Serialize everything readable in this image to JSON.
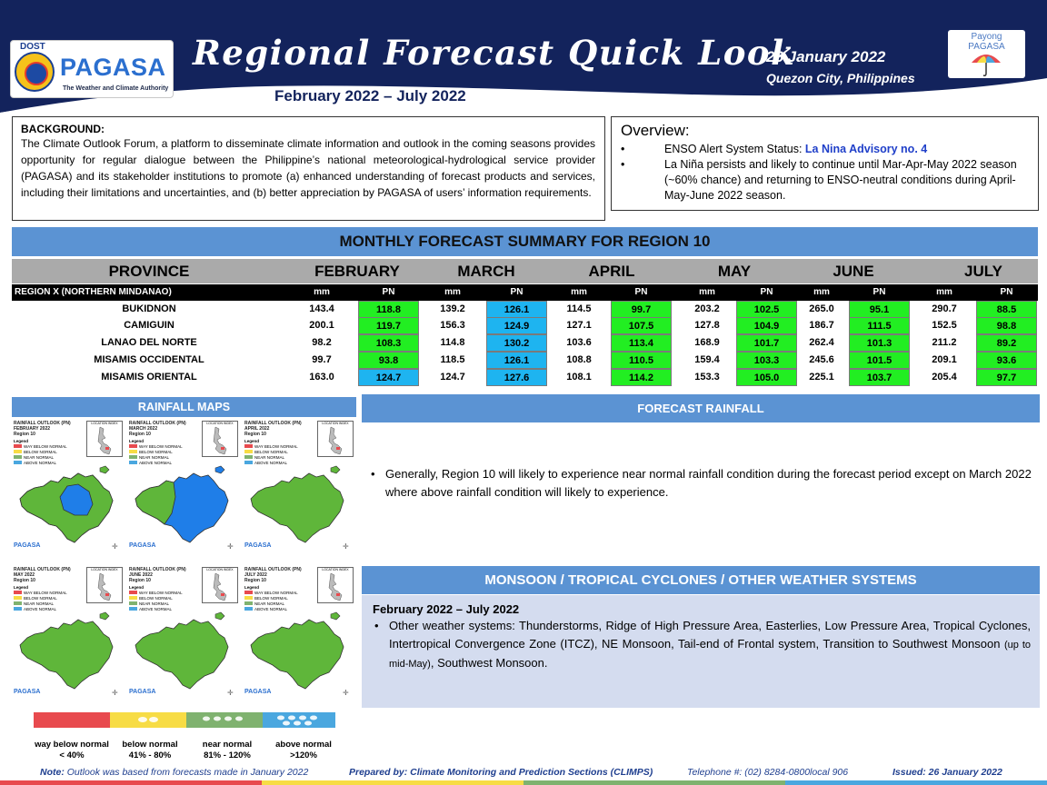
{
  "header": {
    "dost": "DOST",
    "agency": "PAGASA",
    "tagline": "The Weather and Climate Authority",
    "title": "Regional Forecast Quick Look",
    "period": "February 2022 – July 2022",
    "date": "26 January 2022",
    "place": "Quezon City, Philippines",
    "payong_line1": "Payong",
    "payong_line2": "PAGASA"
  },
  "background": {
    "title": "BACKGROUND:",
    "text": "The Climate Outlook Forum, a platform to disseminate climate information and outlook in the coming seasons provides opportunity for regular dialogue between the Philippine’s national meteorological-hydrological service provider (PAGASA) and its stakeholder institutions to promote (a) enhanced understanding of forecast products and services, including their limitations and uncertainties, and (b) better appreciation by PAGASA of users’ information requirements."
  },
  "overview": {
    "title": "Overview:",
    "item1_prefix": "ENSO Alert System Status: ",
    "item1_status": "La Nina Advisory no. 4",
    "item2": "La Niña persists and likely to continue until Mar-Apr-May 2022 season (~60% chance) and returning to ENSO-neutral conditions during April-May-June 2022 season."
  },
  "summary": {
    "title": "MONTHLY FORECAST SUMMARY FOR REGION 10",
    "province_header": "PROVINCE",
    "region_label": "REGION X (NORTHERN MINDANAO)",
    "months": [
      "FEBRUARY",
      "MARCH",
      "APRIL",
      "MAY",
      "JUNE",
      "JULY"
    ],
    "unit_mm": "mm",
    "unit_pn": "PN",
    "rows": [
      {
        "province": "BUKIDNON",
        "values": [
          [
            "143.4",
            "118.8"
          ],
          [
            "139.2",
            "126.1"
          ],
          [
            "114.5",
            "99.7"
          ],
          [
            "203.2",
            "102.5"
          ],
          [
            "265.0",
            "95.1"
          ],
          [
            "290.7",
            "88.5"
          ]
        ],
        "pn_class": [
          "near",
          "above",
          "near",
          "near",
          "near",
          "near"
        ]
      },
      {
        "province": "CAMIGUIN",
        "values": [
          [
            "200.1",
            "119.7"
          ],
          [
            "156.3",
            "124.9"
          ],
          [
            "127.1",
            "107.5"
          ],
          [
            "127.8",
            "104.9"
          ],
          [
            "186.7",
            "111.5"
          ],
          [
            "152.5",
            "98.8"
          ]
        ],
        "pn_class": [
          "near",
          "above",
          "near",
          "near",
          "near",
          "near"
        ]
      },
      {
        "province": "LANAO DEL NORTE",
        "values": [
          [
            "98.2",
            "108.3"
          ],
          [
            "114.8",
            "130.2"
          ],
          [
            "103.6",
            "113.4"
          ],
          [
            "168.9",
            "101.7"
          ],
          [
            "262.4",
            "101.3"
          ],
          [
            "211.2",
            "89.2"
          ]
        ],
        "pn_class": [
          "near",
          "above",
          "near",
          "near",
          "near",
          "near"
        ]
      },
      {
        "province": "MISAMIS OCCIDENTAL",
        "values": [
          [
            "99.7",
            "93.8"
          ],
          [
            "118.5",
            "126.1"
          ],
          [
            "108.8",
            "110.5"
          ],
          [
            "159.4",
            "103.3"
          ],
          [
            "245.6",
            "101.5"
          ],
          [
            "209.1",
            "93.6"
          ]
        ],
        "pn_class": [
          "near",
          "above",
          "near",
          "near",
          "near",
          "near"
        ]
      },
      {
        "province": "MISAMIS ORIENTAL",
        "values": [
          [
            "163.0",
            "124.7"
          ],
          [
            "124.7",
            "127.6"
          ],
          [
            "108.1",
            "114.2"
          ],
          [
            "153.3",
            "105.0"
          ],
          [
            "225.1",
            "103.7"
          ],
          [
            "205.4",
            "97.7"
          ]
        ],
        "pn_class": [
          "above",
          "above",
          "near",
          "near",
          "near",
          "near"
        ]
      }
    ]
  },
  "rainfall_maps": {
    "title": "RAINFALL MAPS",
    "inset_label": "LOCATION INDEX",
    "legend_title": "Legend",
    "legend_items": [
      "WAY BELOW NORMAL",
      "BELOW NORMAL",
      "NEAR NORMAL",
      "ABOVE NORMAL"
    ],
    "brand": "PAGASA",
    "maps": [
      {
        "line1": "RAINFALL OUTLOOK (PN)",
        "line2": "FEBRUARY 2022",
        "line3": "Region 10",
        "fill": "mixed"
      },
      {
        "line1": "RAINFALL OUTLOOK (PN)",
        "line2": "MARCH 2022",
        "line3": "Region 10",
        "fill": "above"
      },
      {
        "line1": "RAINFALL OUTLOOK (PN)",
        "line2": "APRIL 2022",
        "line3": "Region 10",
        "fill": "near"
      },
      {
        "line1": "RAINFALL OUTLOOK (PN)",
        "line2": "MAY 2022",
        "line3": "Region 10",
        "fill": "near"
      },
      {
        "line1": "RAINFALL OUTLOOK (PN)",
        "line2": "JUNE 2022",
        "line3": "Region 10",
        "fill": "near"
      },
      {
        "line1": "RAINFALL OUTLOOK (PN)",
        "line2": "JULY 2022",
        "line3": "Region 10",
        "fill": "near"
      }
    ]
  },
  "legend": [
    {
      "label": "way below normal",
      "range": "< 40%",
      "color": "#e84a4e"
    },
    {
      "label": "below normal",
      "range": "41% - 80%",
      "color": "#f7dc45"
    },
    {
      "label": "near normal",
      "range": "81% - 120%",
      "color": "#7fb26f"
    },
    {
      "label": "above normal",
      "range": ">120%",
      "color": "#4aa7df"
    }
  ],
  "forecast_rainfall": {
    "title": "FORECAST RAINFALL",
    "text": "Generally, Region 10 will likely to experience near  normal rainfall condition during the forecast period except on March 2022 where above rainfall condition will likely to experience."
  },
  "monsoon": {
    "title": "MONSOON / TROPICAL CYCLONES / OTHER WEATHER SYSTEMS",
    "period": "February 2022 – July 2022",
    "text": "Other weather systems: Thunderstorms,  Ridge of High Pressure Area,  Easterlies, Low Pressure Area, Tropical Cyclones, Intertropical Convergence Zone (ITCZ), NE Monsoon, Tail-end of Frontal system, Transition to Southwest Monsoon ",
    "text_small": "(up to mid-May)",
    "text_end": ", Southwest Monsoon."
  },
  "footer": {
    "note_label": "Note:",
    "note": " Outlook was based from forecasts made in January 2022",
    "prepared": "Prepared by: Climate Monitoring and Prediction Sections (CLIMPS)",
    "telephone": "Telephone #: (02) 8284-0800local 906",
    "issued": "Issued: 26 January 2022"
  },
  "colors": {
    "navy": "#13235c",
    "section_blue": "#5b93d3",
    "pn_near": "#22ee22",
    "pn_above": "#1eb4f0",
    "map_near": "#5fb63a",
    "map_above": "#1f7ee8"
  }
}
